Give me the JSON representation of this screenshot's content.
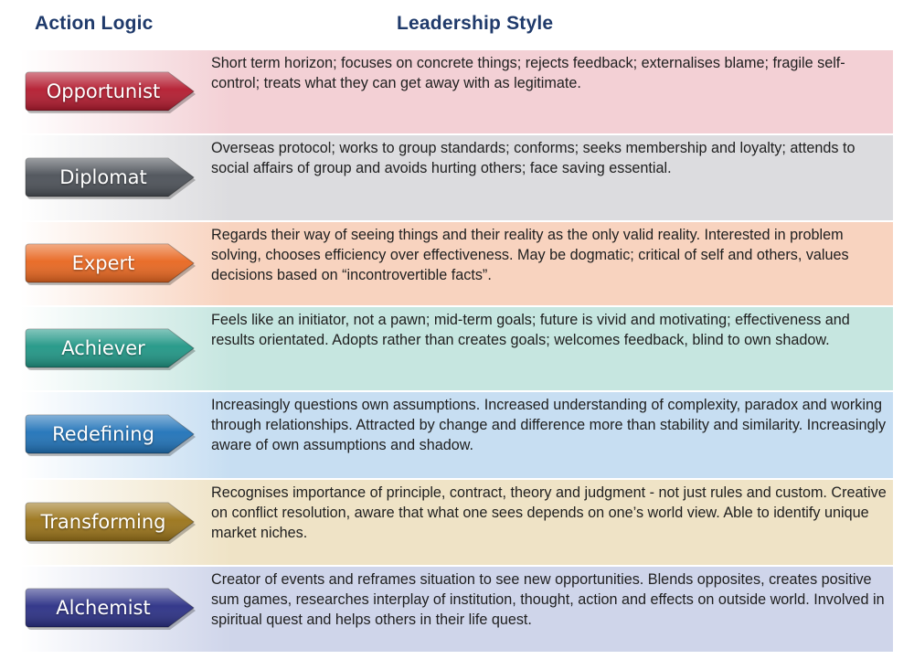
{
  "headers": {
    "left": "Action Logic",
    "right": "Leadership Style"
  },
  "rows": [
    {
      "label": "Opportunist",
      "color": "#b31a2e",
      "band_color": "#f3d0d5",
      "description": "Short term horizon; focuses on concrete things; rejects feedback; externalises blame; fragile self-control; treats what they can get away with as legitimate."
    },
    {
      "label": "Diplomat",
      "color": "#4b5057",
      "band_color": "#dcdcdf",
      "description": "Overseas protocol; works to group standards; conforms; seeks membership and loyalty; attends to social affairs of group and avoids hurting others; face saving essential."
    },
    {
      "label": "Expert",
      "color": "#e8661f",
      "band_color": "#f8d3bf",
      "description": "Regards their way of seeing things and their reality as the only valid reality. Interested in problem solving, chooses efficiency over effectiveness. May be dogmatic; critical of self and others, values decisions based on “incontrovertible facts”."
    },
    {
      "label": "Achiever",
      "color": "#1f9685",
      "band_color": "#c6e6e0",
      "description": "Feels like an initiator, not a pawn; mid-term goals; future is vivid and motivating; effectiveness and results orientated. Adopts rather than creates goals; welcomes feedback, blind to own shadow."
    },
    {
      "label": "Redefining",
      "color": "#1f72b8",
      "band_color": "#c7def2",
      "description": "Increasingly questions own assumptions. Increased understanding of complexity, paradox and working through relationships. Attracted by change and difference more than stability and similarity. Increasingly aware of own assumptions and shadow."
    },
    {
      "label": "Transforming",
      "color": "#9a7318",
      "band_color": "#efe3c6",
      "description": "Recognises importance of principle, contract, theory and judgment - not just rules and custom. Creative on conflict resolution, aware that what one sees depends on one’s world view. Able to identify unique market niches."
    },
    {
      "label": "Alchemist",
      "color": "#2a2f85",
      "band_color": "#cfd5ea",
      "description": "Creator of events and reframes situation to see new opportunities. Blends opposites, creates positive sum games, researches interplay of institution, thought, action and effects on outside world. Involved in spiritual quest and helps others in their life quest."
    }
  ]
}
